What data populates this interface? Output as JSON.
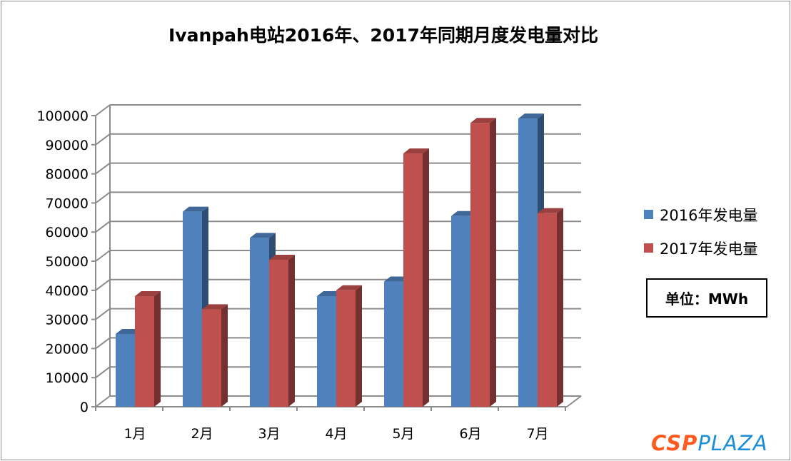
{
  "chart_data": {
    "type": "bar",
    "title": "Ivanpah电站2016年、2017年同期月度发电量对比",
    "categories": [
      "1月",
      "2月",
      "3月",
      "4月",
      "5月",
      "6月",
      "7月"
    ],
    "series": [
      {
        "name": "2016年发电量",
        "color": "#4f81bd",
        "values": [
          25000,
          67000,
          58000,
          38000,
          43000,
          65500,
          99000
        ]
      },
      {
        "name": "2017年发电量",
        "color": "#c0504d",
        "values": [
          38000,
          33500,
          50500,
          40000,
          87000,
          97500,
          66500
        ]
      }
    ],
    "ylim": [
      0,
      100000
    ],
    "yticks": [
      "100000",
      "90000",
      "80000",
      "70000",
      "60000",
      "50000",
      "40000",
      "30000",
      "20000",
      "10000",
      "0"
    ],
    "grid": true,
    "legend": "right",
    "unit_note": "单位：MWh"
  },
  "watermark": {
    "part1": "CSP",
    "part2": "PLAZA"
  }
}
